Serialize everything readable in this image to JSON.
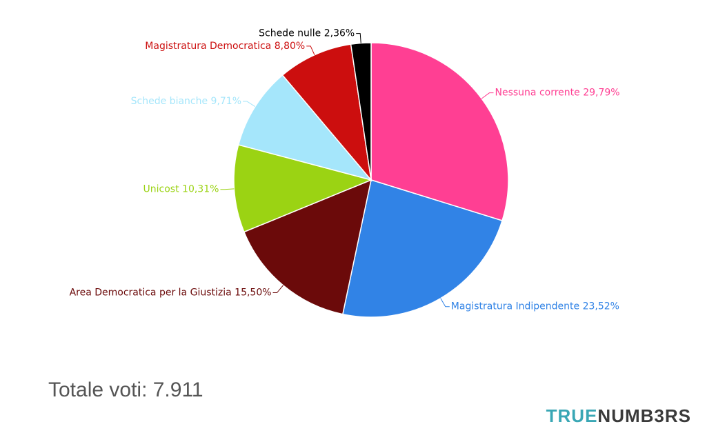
{
  "chart_data": {
    "type": "pie",
    "categories": [
      "Nessuna corrente",
      "Magistratura Indipendente",
      "Area Democratica per la Giustizia",
      "Unicost",
      "Schede bianche",
      "Magistratura Democratica",
      "Schede nulle"
    ],
    "values": [
      29.79,
      23.52,
      15.5,
      10.31,
      9.71,
      8.8,
      2.36
    ],
    "value_labels": [
      "29,79%",
      "23,52%",
      "15,50%",
      "10,31%",
      "9,71%",
      "8,80%",
      "2,36%"
    ],
    "colors": [
      "#ff3f93",
      "#3183e6",
      "#6b0a0a",
      "#9bd313",
      "#a5e6fb",
      "#cc0e0e",
      "#000000"
    ],
    "annotation": "Totale voti: 7.911"
  },
  "brand": {
    "first": "TRUE",
    "second": "NUMB3RS"
  }
}
